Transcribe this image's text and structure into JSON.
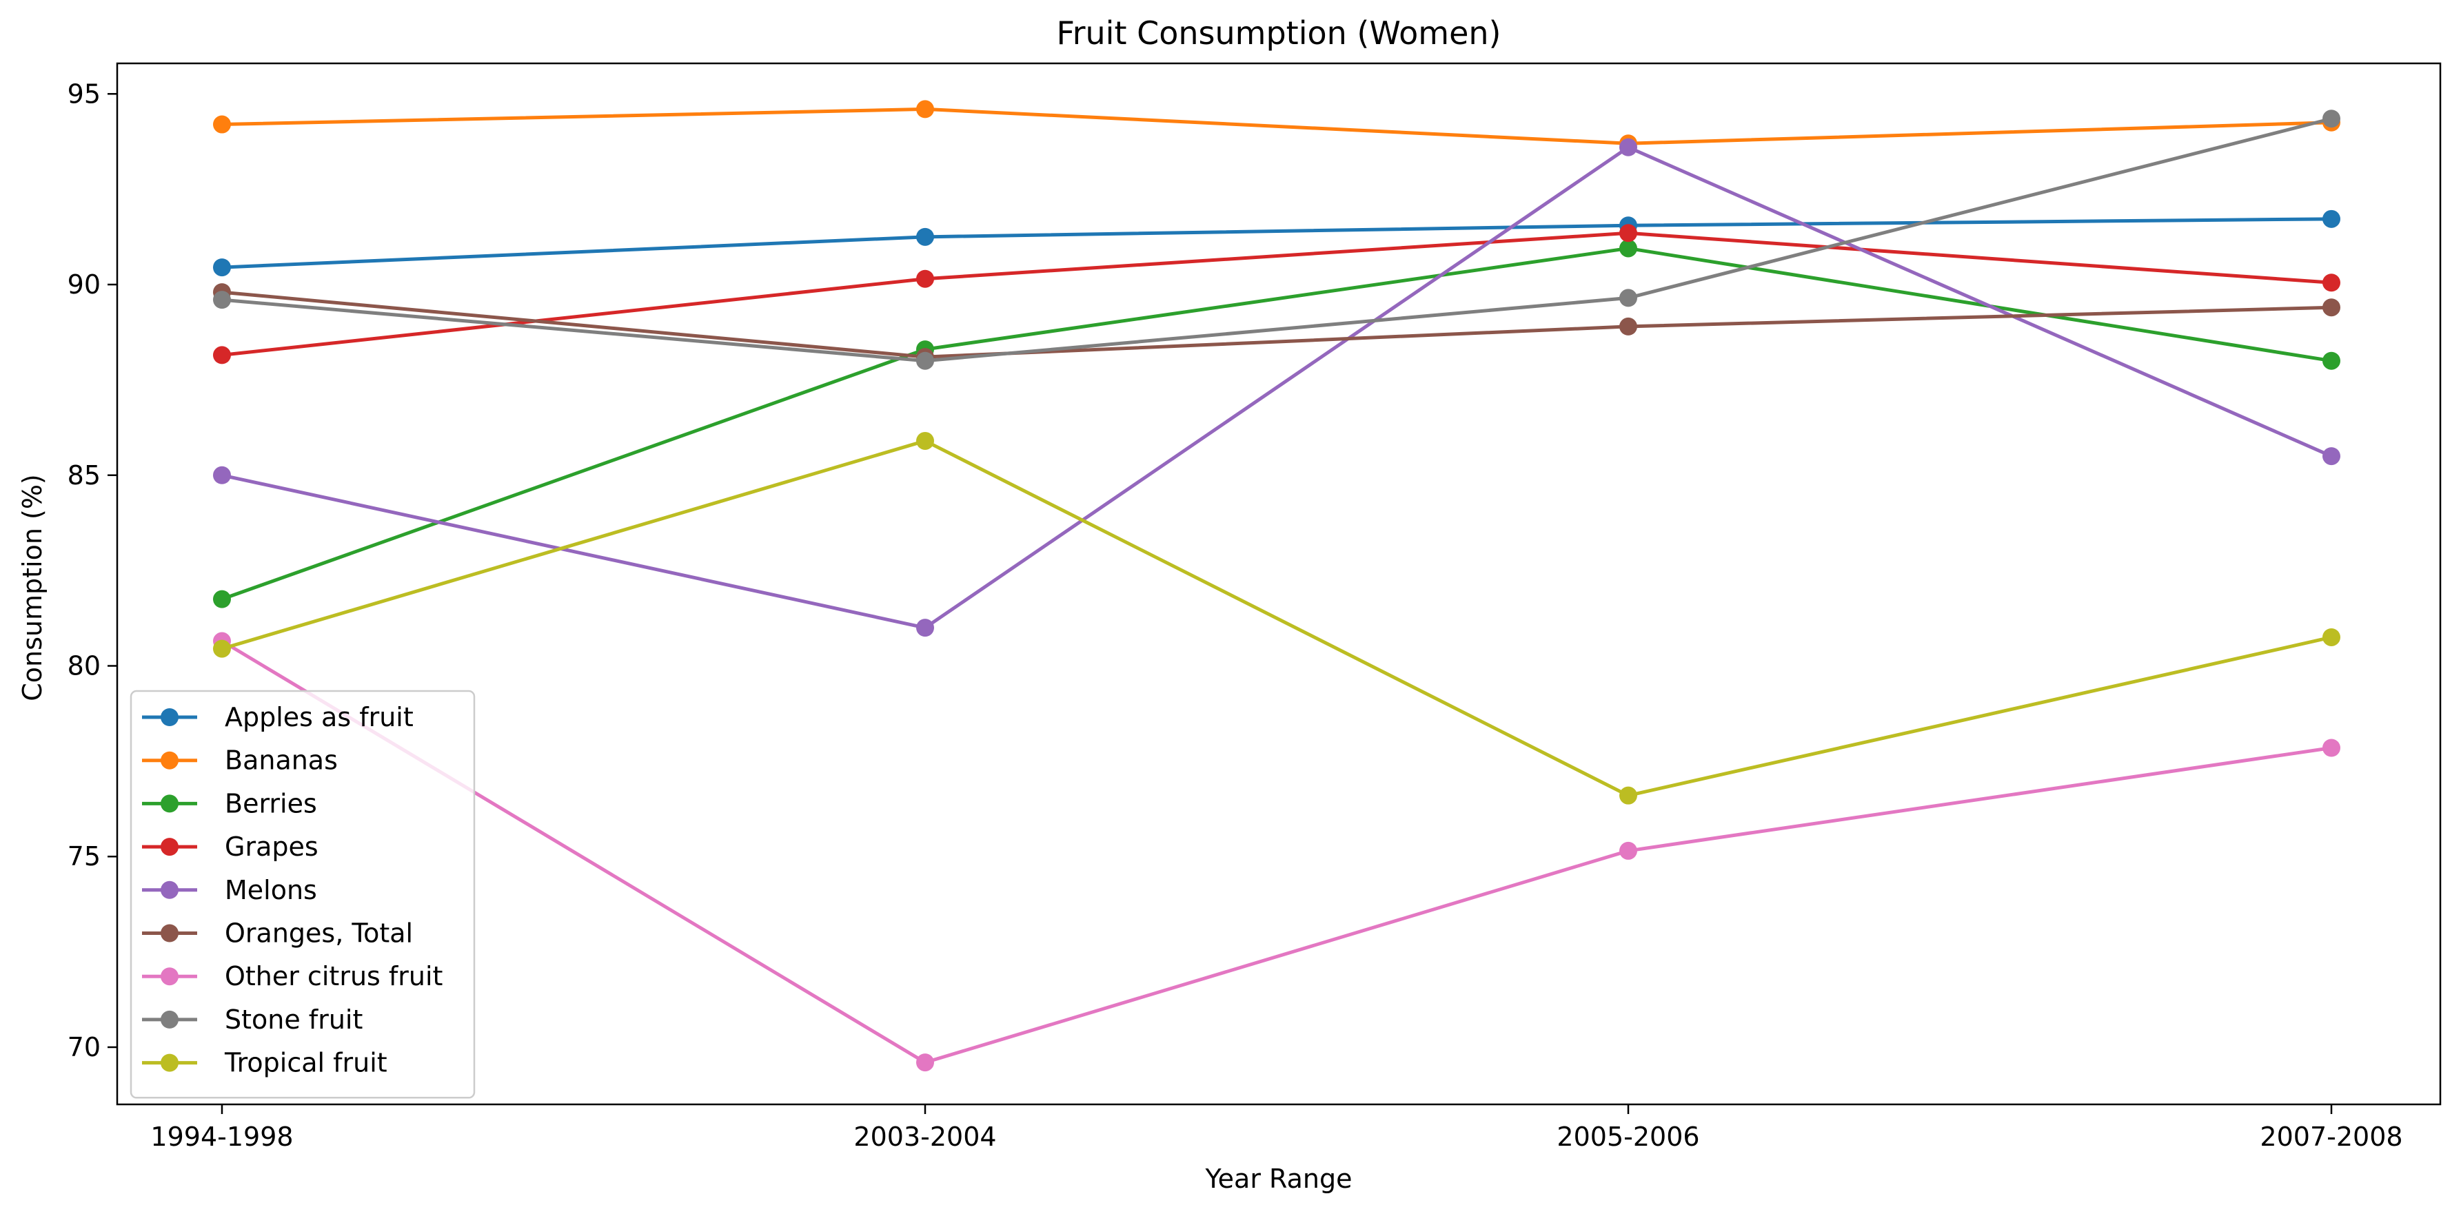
{
  "chart_data": {
    "type": "line",
    "title": "Fruit Consumption (Women)",
    "xlabel": "Year Range",
    "ylabel": "Consumption (%)",
    "categories": [
      "1994-1998",
      "2003-2004",
      "2005-2006",
      "2007-2008"
    ],
    "ylim": [
      68.5,
      95.8
    ],
    "yticks": [
      70,
      75,
      80,
      85,
      90,
      95
    ],
    "grid": false,
    "legend_position": "lower-left",
    "markers": true,
    "series": [
      {
        "name": "Apples as fruit",
        "color": "#1f77b4",
        "values": [
          90.45,
          91.25,
          91.55,
          91.72
        ]
      },
      {
        "name": "Bananas",
        "color": "#ff7f0e",
        "values": [
          94.2,
          94.6,
          93.7,
          94.25
        ]
      },
      {
        "name": "Berries",
        "color": "#2ca02c",
        "values": [
          81.75,
          88.3,
          90.95,
          88.0
        ]
      },
      {
        "name": "Grapes",
        "color": "#d62728",
        "values": [
          88.15,
          90.15,
          91.35,
          90.05
        ]
      },
      {
        "name": "Melons",
        "color": "#9467bd",
        "values": [
          85.0,
          81.0,
          93.6,
          85.5
        ]
      },
      {
        "name": "Oranges, Total",
        "color": "#8c564b",
        "values": [
          89.8,
          88.1,
          88.9,
          89.4
        ]
      },
      {
        "name": "Other citrus fruit",
        "color": "#e377c2",
        "values": [
          80.65,
          69.6,
          75.15,
          77.85
        ]
      },
      {
        "name": "Stone fruit",
        "color": "#7f7f7f",
        "values": [
          89.6,
          88.0,
          89.65,
          94.35
        ]
      },
      {
        "name": "Tropical fruit",
        "color": "#bcbd22",
        "values": [
          80.45,
          85.9,
          76.6,
          80.75
        ]
      }
    ]
  }
}
